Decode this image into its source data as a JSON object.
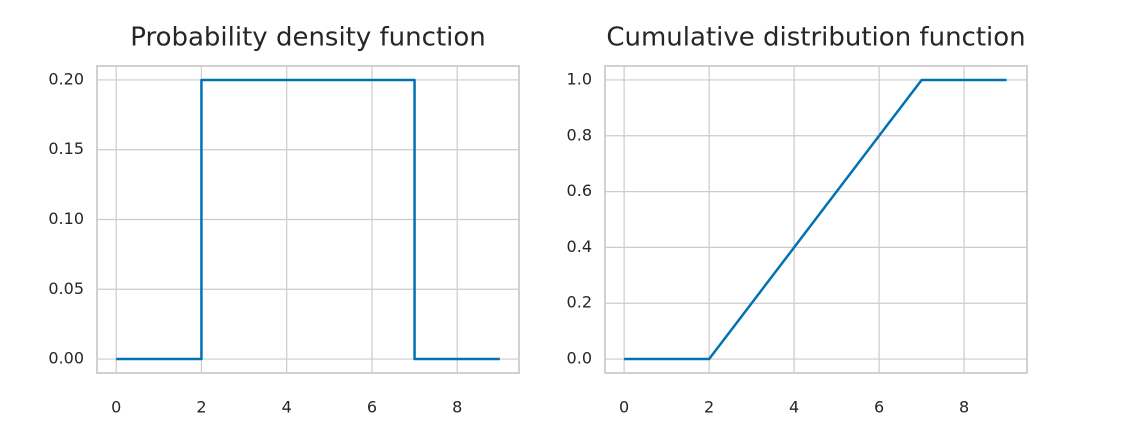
{
  "chart_data": [
    {
      "type": "line",
      "title": "Probability density function",
      "x": [
        0,
        2,
        2,
        7,
        7,
        9
      ],
      "values": [
        0,
        0,
        0.2,
        0.2,
        0,
        0
      ],
      "color": "#0173b2",
      "xlim": [
        -0.45,
        9.45
      ],
      "ylim": [
        -0.01,
        0.21
      ],
      "xticks": [
        0,
        2,
        4,
        6,
        8
      ],
      "yticks": [
        {
          "value": 0,
          "label": "0.00"
        },
        {
          "value": 0.05,
          "label": "0.05"
        },
        {
          "value": 0.1,
          "label": "0.10"
        },
        {
          "value": 0.15,
          "label": "0.15"
        },
        {
          "value": 0.2,
          "label": "0.20"
        }
      ],
      "grid": true
    },
    {
      "type": "line",
      "title": "Cumulative distribution function",
      "x": [
        0,
        2,
        7,
        9
      ],
      "values": [
        0,
        0,
        1,
        1
      ],
      "color": "#0173b2",
      "xlim": [
        -0.45,
        9.48
      ],
      "ylim": [
        -0.05,
        1.05
      ],
      "xticks": [
        0,
        2,
        4,
        6,
        8
      ],
      "yticks": [
        {
          "value": 0,
          "label": "0.0"
        },
        0.2,
        0.4,
        0.6,
        0.8,
        {
          "value": 1,
          "label": "1.0"
        }
      ],
      "grid": true
    }
  ]
}
